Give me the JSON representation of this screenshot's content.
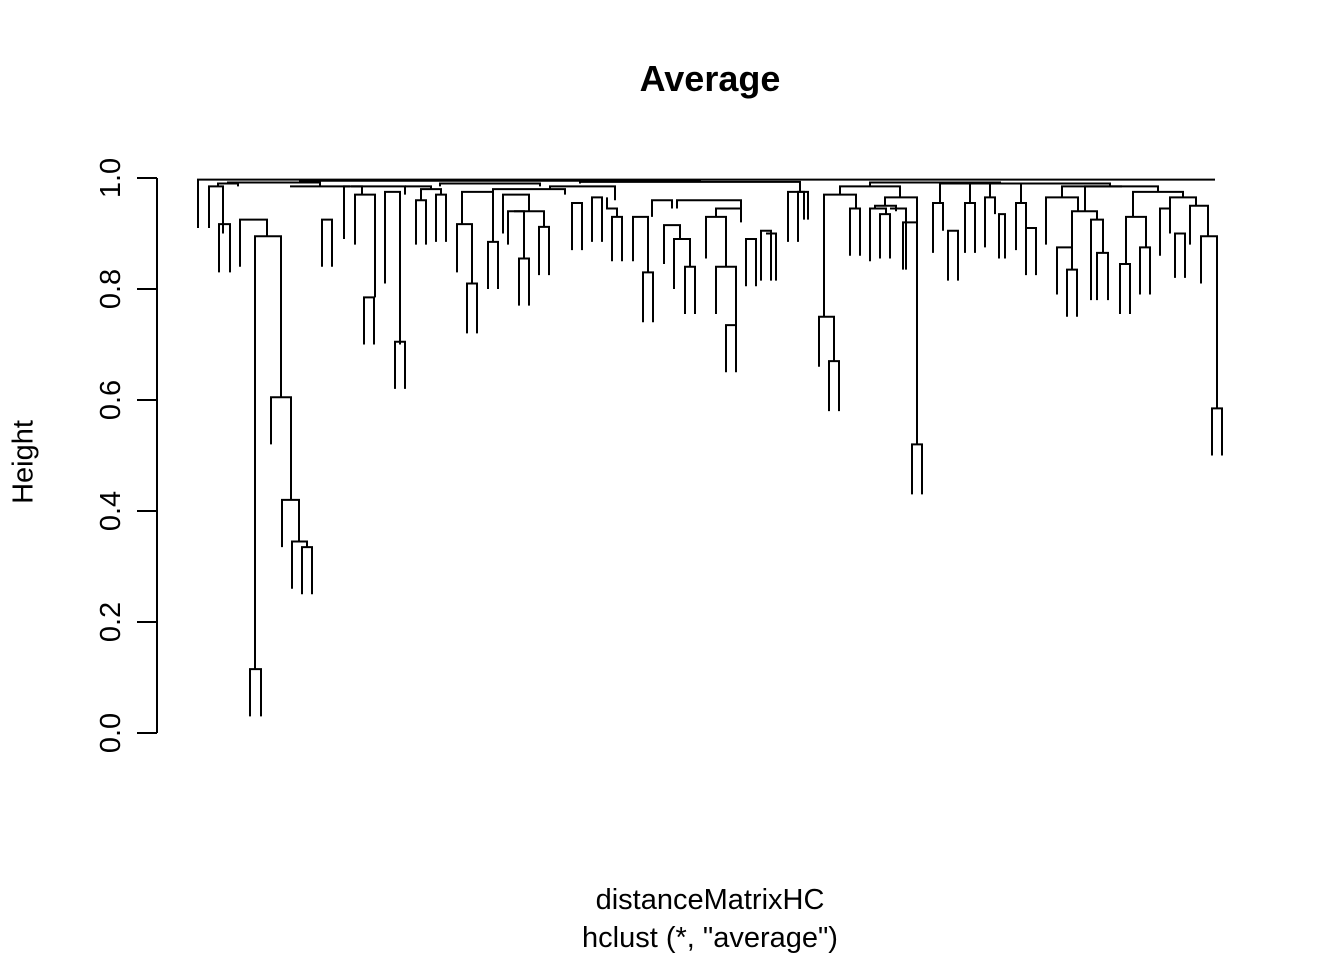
{
  "chart_data": {
    "type": "dendrogram",
    "title": "Average",
    "xlabel": "distanceMatrixHC",
    "sublabel": "hclust (*, \"average\")",
    "ylabel": "Height",
    "ylim": [
      0,
      1
    ],
    "yticks": [
      "0.0",
      "0.2",
      "0.4",
      "0.6",
      "0.8",
      "1.0"
    ],
    "root_height": 0.997,
    "merges": [
      {
        "h": 0.985,
        "members": [
          0.91,
          0.9
        ]
      },
      {
        "h": 0.917,
        "members": [
          0.83,
          0.83
        ]
      },
      {
        "h": 0.925,
        "members": [
          0.84,
          0.895
        ]
      },
      {
        "h": 0.895,
        "members": [
          0.115,
          0.605
        ]
      },
      {
        "h": 0.115,
        "members": [
          0.03,
          0.03
        ]
      },
      {
        "h": 0.605,
        "members": [
          0.52,
          0.42
        ]
      },
      {
        "h": 0.42,
        "members": [
          0.335,
          0.345
        ]
      },
      {
        "h": 0.345,
        "members": [
          0.26,
          0.335
        ]
      },
      {
        "h": 0.335,
        "members": [
          0.25,
          0.25
        ]
      },
      {
        "h": 0.925,
        "members": [
          0.84,
          0.84
        ]
      },
      {
        "h": 0.985,
        "members": [
          0.89,
          0.97
        ]
      },
      {
        "h": 0.97,
        "members": [
          0.88,
          0.785
        ]
      },
      {
        "h": 0.785,
        "members": [
          0.7,
          0.7
        ]
      },
      {
        "h": 0.975,
        "members": [
          0.81,
          0.7
        ]
      },
      {
        "h": 0.705,
        "members": [
          0.62,
          0.62
        ]
      },
      {
        "h": 0.917,
        "members": [
          0.83,
          0.81
        ]
      },
      {
        "h": 0.81,
        "members": [
          0.72,
          0.72
        ]
      },
      {
        "h": 0.885,
        "members": [
          0.8,
          0.8
        ]
      },
      {
        "h": 0.855,
        "members": [
          0.77,
          0.77
        ]
      },
      {
        "h": 0.912,
        "members": [
          0.825,
          0.825
        ]
      },
      {
        "h": 0.83,
        "members": [
          0.74,
          0.74
        ]
      },
      {
        "h": 0.84,
        "members": [
          0.755,
          0.735
        ]
      },
      {
        "h": 0.735,
        "members": [
          0.65,
          0.65
        ]
      },
      {
        "h": 0.975,
        "members": [
          0.885,
          0.925
        ]
      },
      {
        "h": 0.75,
        "members": [
          0.66,
          0.67
        ]
      },
      {
        "h": 0.67,
        "members": [
          0.58,
          0.58
        ]
      },
      {
        "h": 0.92,
        "members": [
          0.835,
          0.52
        ]
      },
      {
        "h": 0.52,
        "members": [
          0.43,
          0.43
        ]
      },
      {
        "h": 0.875,
        "members": [
          0.79,
          0.835
        ]
      },
      {
        "h": 0.835,
        "members": [
          0.75,
          0.75
        ]
      },
      {
        "h": 0.895,
        "members": [
          0.81,
          0.585
        ]
      },
      {
        "h": 0.585,
        "members": [
          0.5,
          0.5
        ]
      }
    ]
  }
}
